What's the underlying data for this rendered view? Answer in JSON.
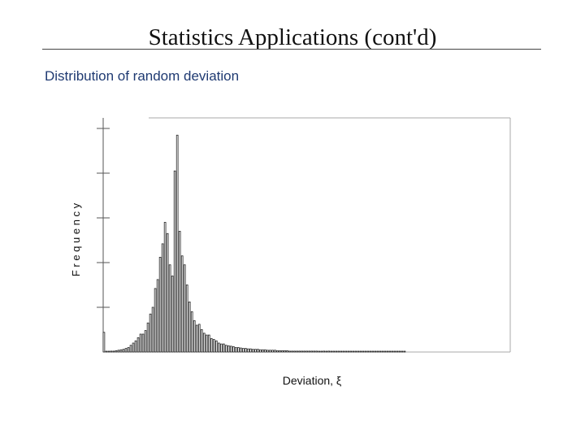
{
  "slide": {
    "title": "Statistics Applications (cont'd)",
    "subtitle": "Distribution of random deviation"
  },
  "chart_data": {
    "type": "bar",
    "xlabel": "Deviation, ξ",
    "ylabel": "F r e q u e n c y",
    "grid": false,
    "ylim": [
      0,
      5
    ],
    "values": [
      0.44,
      0.01,
      0.01,
      0.02,
      0.02,
      0.03,
      0.04,
      0.05,
      0.06,
      0.08,
      0.1,
      0.15,
      0.2,
      0.25,
      0.32,
      0.4,
      0.4,
      0.48,
      0.65,
      0.85,
      1.0,
      1.42,
      1.62,
      2.12,
      2.42,
      2.9,
      2.65,
      1.95,
      1.7,
      4.05,
      4.85,
      2.7,
      2.15,
      1.95,
      1.5,
      1.12,
      0.9,
      0.7,
      0.6,
      0.62,
      0.5,
      0.42,
      0.38,
      0.38,
      0.3,
      0.28,
      0.25,
      0.2,
      0.18,
      0.18,
      0.15,
      0.14,
      0.13,
      0.12,
      0.1,
      0.1,
      0.09,
      0.08,
      0.08,
      0.07,
      0.07,
      0.06,
      0.06,
      0.06,
      0.05,
      0.05,
      0.05,
      0.04,
      0.04,
      0.04,
      0.04,
      0.03,
      0.03,
      0.03,
      0.03,
      0.03,
      0.02,
      0.02,
      0.02,
      0.02,
      0.02,
      0.02,
      0.02,
      0.02,
      0.02,
      0.02,
      0.02,
      0.02,
      0.01,
      0.01,
      0.02,
      0.01,
      0.02,
      0.01,
      0.01,
      0.01,
      0.01,
      0.01,
      0.01,
      0.01,
      0.01,
      0.01,
      0.01,
      0.01,
      0.01,
      0.01,
      0.0,
      0.01,
      0.01,
      0.01,
      0.01,
      0.01,
      0.01,
      0.0,
      0.0,
      0.0,
      0.0,
      0.01,
      0.0,
      0.0,
      0.0,
      0.01,
      0.0,
      0.01
    ]
  }
}
